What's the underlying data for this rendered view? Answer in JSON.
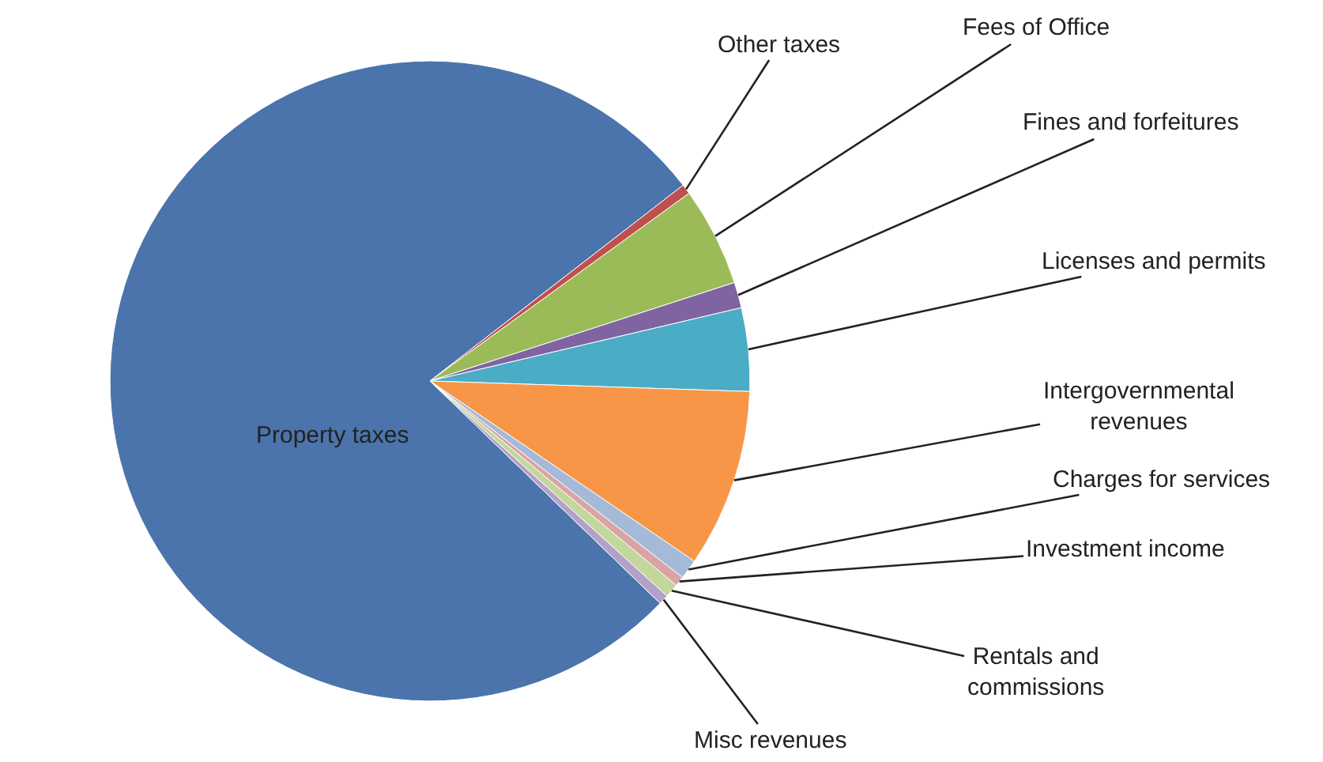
{
  "chart_data": {
    "type": "pie",
    "categories": [
      "Property taxes",
      "Other taxes",
      "Fees of Office",
      "Fines and forfeitures",
      "Licenses and permits",
      "Intergovernmental revenues",
      "Charges for services",
      "Investment income",
      "Rentals and commissions",
      "Misc revenues"
    ],
    "values": [
      77.3,
      0.5,
      5,
      1.3,
      4.2,
      9,
      1,
      0.5,
      0.7,
      0.5
    ],
    "colors": [
      "#4a74ab",
      "#c0504d",
      "#9bbb59",
      "#8064a2",
      "#4bacc6",
      "#f79646",
      "#a5b9d8",
      "#d9a5a4",
      "#c3d69b",
      "#b3a2c7"
    ],
    "legend": false
  }
}
